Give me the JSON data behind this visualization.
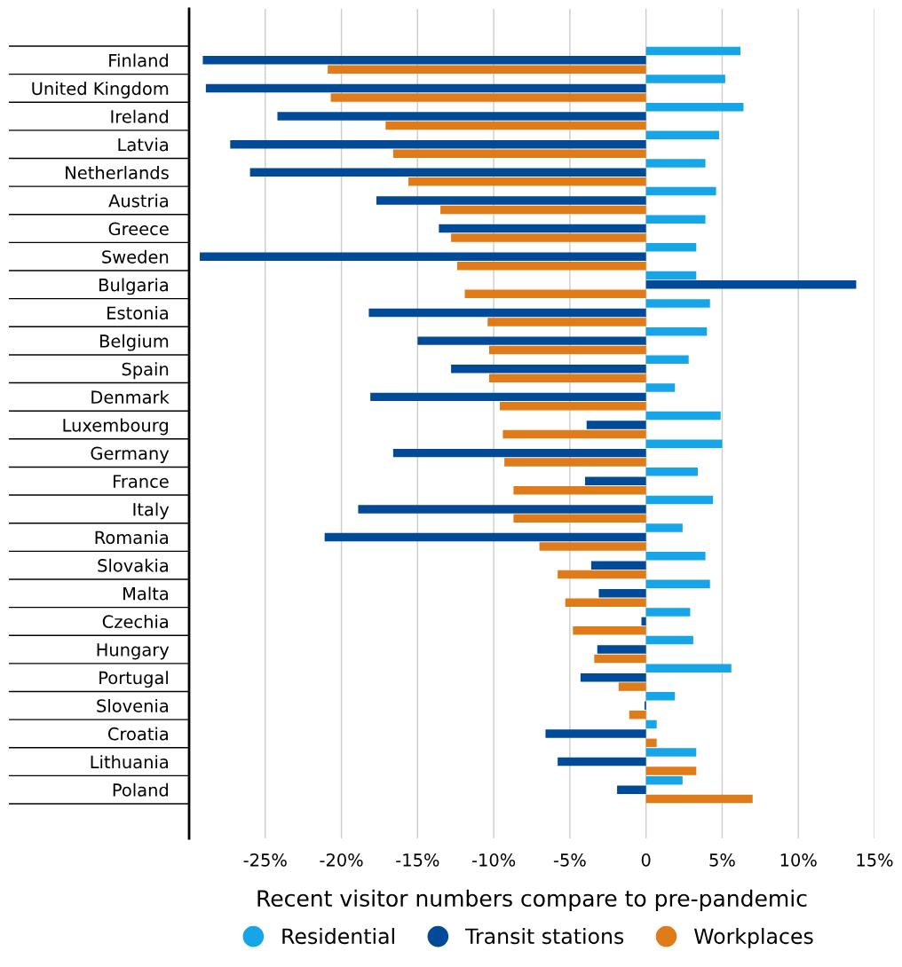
{
  "chart_data": {
    "type": "bar",
    "orientation": "horizontal",
    "xlabel": "Recent visitor numbers compare to pre-pandemic",
    "categories": [
      "Finland",
      "United Kingdom",
      "Ireland",
      "Latvia",
      "Netherlands",
      "Austria",
      "Greece",
      "Sweden",
      "Bulgaria",
      "Estonia",
      "Belgium",
      "Spain",
      "Denmark",
      "Luxembourg",
      "Germany",
      "France",
      "Italy",
      "Romania",
      "Slovakia",
      "Malta",
      "Czechia",
      "Hungary",
      "Portugal",
      "Slovenia",
      "Croatia",
      "Lithuania",
      "Poland"
    ],
    "series": [
      {
        "name": "Residential",
        "color": "#16a5e6",
        "values": [
          6.2,
          5.2,
          6.4,
          4.8,
          3.9,
          4.6,
          3.9,
          3.3,
          3.3,
          4.2,
          4.0,
          2.8,
          1.9,
          4.9,
          5.0,
          3.4,
          4.4,
          2.4,
          3.9,
          4.2,
          2.9,
          3.1,
          5.6,
          1.9,
          0.7,
          3.3,
          2.4
        ]
      },
      {
        "name": "Transit stations",
        "color": "#004a98",
        "values": [
          -29.1,
          -28.9,
          -24.2,
          -27.3,
          -26.0,
          -17.7,
          -13.6,
          -29.3,
          13.8,
          -18.2,
          -15.0,
          -12.8,
          -18.1,
          -3.9,
          -16.6,
          -4.0,
          -18.9,
          -21.1,
          -3.6,
          -3.1,
          -0.3,
          -3.2,
          -4.3,
          -0.1,
          -6.6,
          -5.8,
          -1.9
        ]
      },
      {
        "name": "Workplaces",
        "color": "#e07b1a",
        "values": [
          -20.9,
          -20.7,
          -17.1,
          -16.6,
          -15.6,
          -13.5,
          -12.8,
          -12.4,
          -11.9,
          -10.4,
          -10.3,
          -10.3,
          -9.6,
          -9.4,
          -9.3,
          -8.7,
          -8.7,
          -7.0,
          -5.8,
          -5.3,
          -4.8,
          -3.4,
          -1.8,
          -1.1,
          0.7,
          3.3,
          7.0
        ]
      }
    ],
    "xlim": [
      -30,
      15
    ],
    "xticks": [
      {
        "value": -30,
        "label": null
      },
      {
        "value": -25,
        "label": "-25%"
      },
      {
        "value": -20,
        "label": "-20%"
      },
      {
        "value": -15,
        "label": "-15%"
      },
      {
        "value": -10,
        "label": "-10%"
      },
      {
        "value": -5,
        "label": "-5%"
      },
      0,
      {
        "value": 5,
        "label": "5%"
      },
      {
        "value": 10,
        "label": "10%"
      },
      {
        "value": 15,
        "label": "15%"
      }
    ],
    "grid": "x",
    "legend": "bottom",
    "marker": "circle"
  }
}
